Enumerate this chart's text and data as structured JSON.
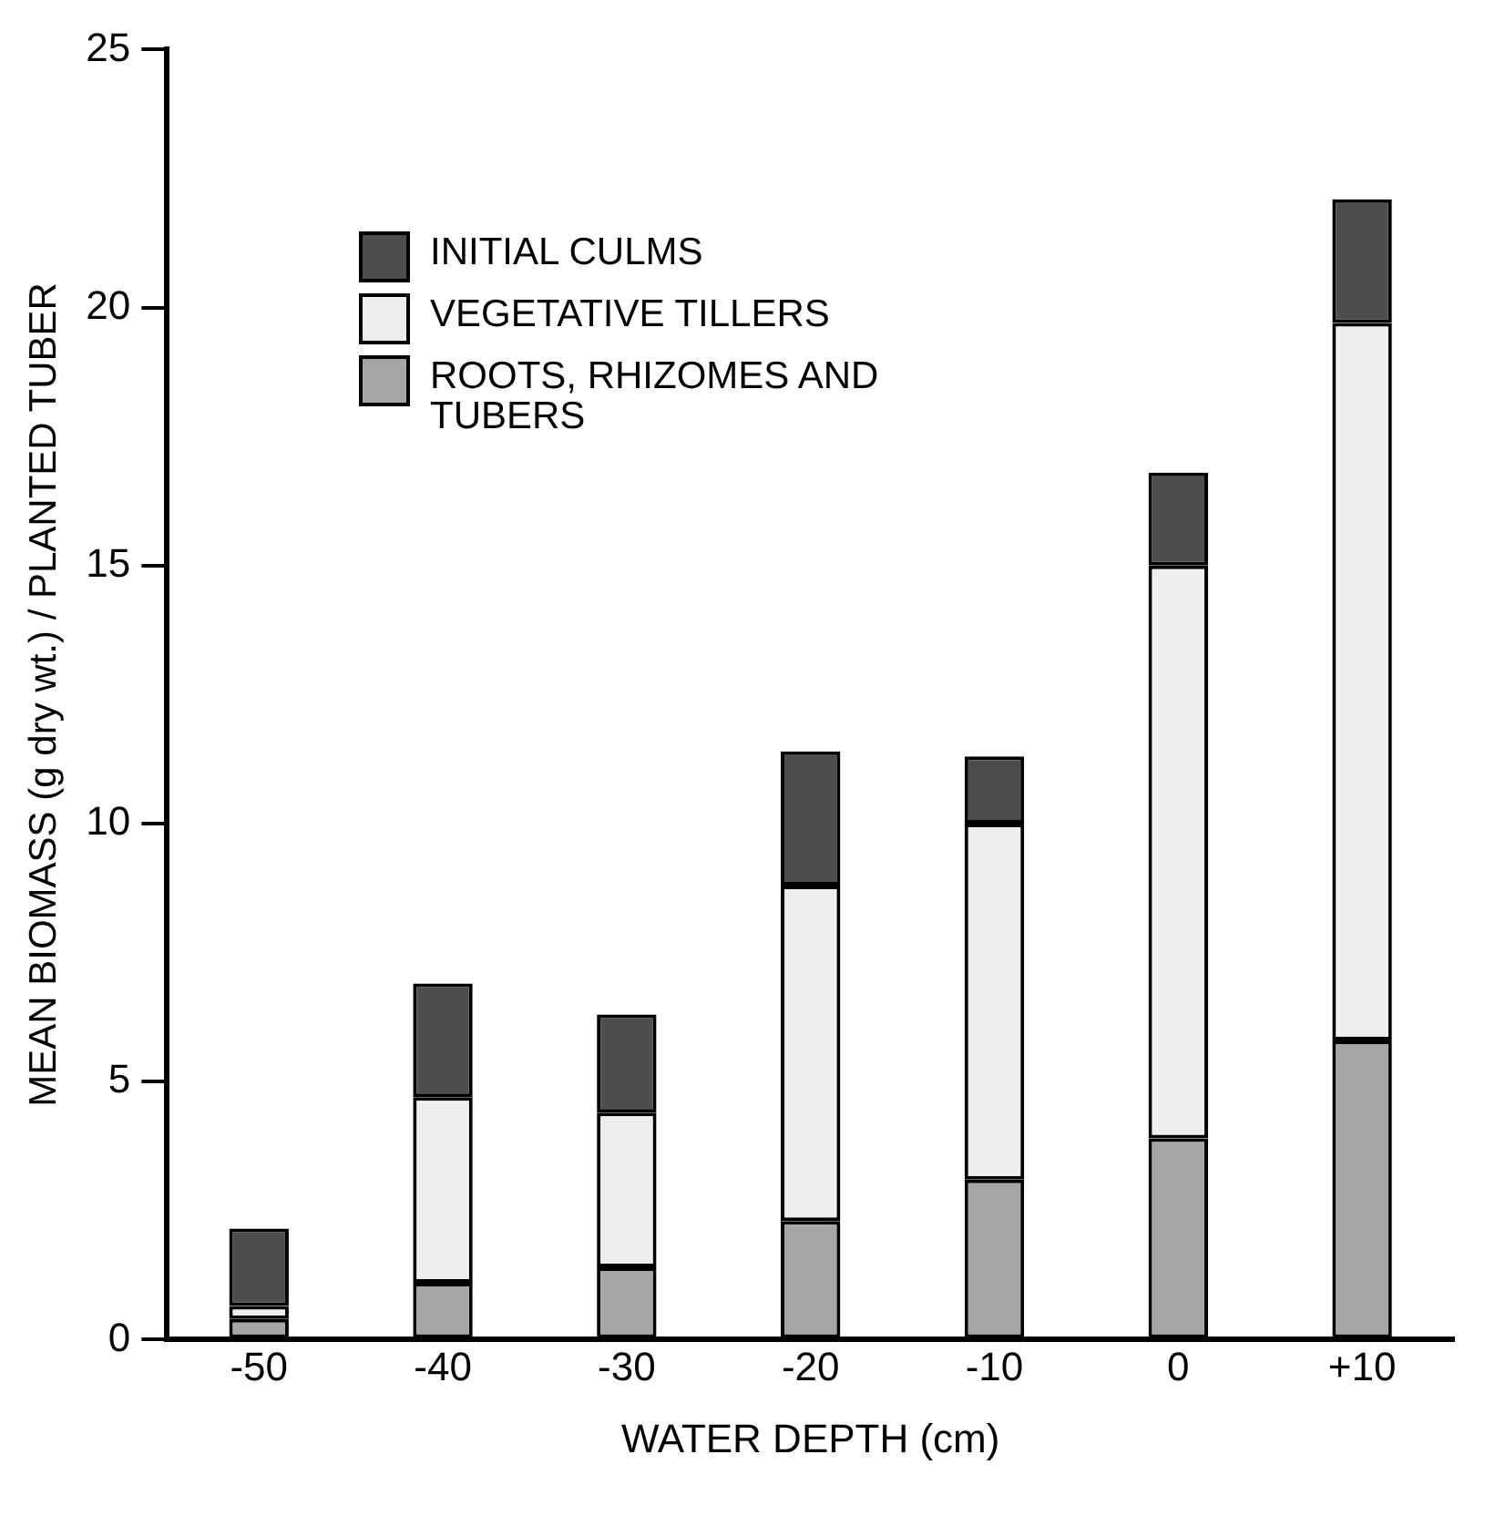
{
  "chart_data": {
    "type": "bar",
    "xlabel": "WATER DEPTH (cm)",
    "ylabel": "MEAN BIOMASS (g dry wt.) / PLANTED TUBER",
    "categories": [
      "-50",
      "-40",
      "-30",
      "-20",
      "-10",
      "0",
      "+10"
    ],
    "stacked": true,
    "ylim": [
      0,
      25
    ],
    "yticks": [
      0,
      5,
      10,
      15,
      20,
      25
    ],
    "grid": false,
    "legend": "top left",
    "series": [
      {
        "name": "ROOTS, RHIZOMES AND TUBERS",
        "color": "#a6a6a6",
        "values": [
          0.4,
          1.1,
          1.4,
          2.3,
          3.1,
          3.9,
          5.8
        ]
      },
      {
        "name": "VEGETATIVE TILLERS",
        "color": "#eeeeee",
        "values": [
          0.25,
          3.6,
          3.0,
          6.5,
          6.9,
          11.1,
          13.9
        ]
      },
      {
        "name": "INITIAL CULMS",
        "color": "#4d4d4d",
        "values": [
          1.5,
          2.2,
          1.9,
          2.6,
          1.3,
          1.8,
          2.4
        ]
      }
    ]
  }
}
